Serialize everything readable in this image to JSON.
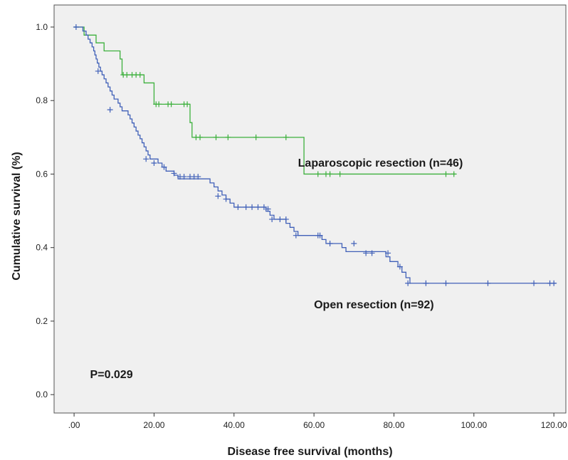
{
  "chart_data": {
    "type": "line",
    "title": "",
    "xlabel": "Disease free survival (months)",
    "ylabel": "Cumulative survival (%)",
    "xlim": [
      -5,
      123
    ],
    "ylim": [
      -0.05,
      1.06
    ],
    "x_ticks": [
      {
        "value": 0,
        "label": ".00"
      },
      {
        "value": 20,
        "label": "20.00"
      },
      {
        "value": 40,
        "label": "40.00"
      },
      {
        "value": 60,
        "label": "60.00"
      },
      {
        "value": 80,
        "label": "80.00"
      },
      {
        "value": 100,
        "label": "100.00"
      },
      {
        "value": 120,
        "label": "120.00"
      }
    ],
    "y_ticks": [
      {
        "value": 0,
        "label": "0.0"
      },
      {
        "value": 0.2,
        "label": "0.2"
      },
      {
        "value": 0.4,
        "label": "0.4"
      },
      {
        "value": 0.6,
        "label": "0.6"
      },
      {
        "value": 0.8,
        "label": "0.8"
      },
      {
        "value": 1.0,
        "label": "1.0"
      }
    ],
    "plot_background": "#f0f0f0",
    "annotations": [
      {
        "text": "P=0.029",
        "x": 4,
        "y": 0.045
      },
      {
        "text": "Laparoscopic resection (n=46)",
        "x": 56,
        "y": 0.62
      },
      {
        "text": "Open resection (n=92)",
        "x": 60,
        "y": 0.235
      }
    ],
    "series": [
      {
        "name": "Laparoscopic resection (n=46)",
        "color": "#3cb03c",
        "steps": [
          [
            0,
            1.0
          ],
          [
            2.5,
            0.978
          ],
          [
            5.5,
            0.957
          ],
          [
            7.5,
            0.935
          ],
          [
            11.5,
            0.913
          ],
          [
            12,
            0.87
          ],
          [
            17.5,
            0.848
          ],
          [
            20,
            0.79
          ],
          [
            29,
            0.74
          ],
          [
            29.5,
            0.7
          ],
          [
            57.5,
            0.6
          ],
          [
            95.5,
            0.6
          ]
        ],
        "censored": [
          [
            12.3,
            0.87
          ],
          [
            13.2,
            0.87
          ],
          [
            14.5,
            0.87
          ],
          [
            15.5,
            0.87
          ],
          [
            16.5,
            0.87
          ],
          [
            20.5,
            0.79
          ],
          [
            21.2,
            0.79
          ],
          [
            23.5,
            0.79
          ],
          [
            24.3,
            0.79
          ],
          [
            27.5,
            0.79
          ],
          [
            28.3,
            0.79
          ],
          [
            30.5,
            0.7
          ],
          [
            31.5,
            0.7
          ],
          [
            35.5,
            0.7
          ],
          [
            38.5,
            0.7
          ],
          [
            45.5,
            0.7
          ],
          [
            53,
            0.7
          ],
          [
            61,
            0.6
          ],
          [
            63,
            0.6
          ],
          [
            64,
            0.6
          ],
          [
            66.5,
            0.6
          ],
          [
            93,
            0.6
          ],
          [
            95,
            0.6
          ]
        ]
      },
      {
        "name": "Open resection (n=92)",
        "color": "#4060b8",
        "steps": [
          [
            0,
            1.0
          ],
          [
            2.2,
            0.989
          ],
          [
            3,
            0.978
          ],
          [
            3.5,
            0.967
          ],
          [
            4,
            0.957
          ],
          [
            4.5,
            0.946
          ],
          [
            4.9,
            0.935
          ],
          [
            5.2,
            0.924
          ],
          [
            5.5,
            0.913
          ],
          [
            5.8,
            0.902
          ],
          [
            6.2,
            0.891
          ],
          [
            6.6,
            0.88
          ],
          [
            7,
            0.87
          ],
          [
            7.5,
            0.859
          ],
          [
            8,
            0.848
          ],
          [
            8.5,
            0.837
          ],
          [
            9,
            0.826
          ],
          [
            9.5,
            0.815
          ],
          [
            10,
            0.804
          ],
          [
            11,
            0.793
          ],
          [
            11.5,
            0.783
          ],
          [
            12,
            0.772
          ],
          [
            13.5,
            0.761
          ],
          [
            14,
            0.75
          ],
          [
            14.5,
            0.739
          ],
          [
            15,
            0.728
          ],
          [
            15.5,
            0.717
          ],
          [
            16,
            0.706
          ],
          [
            16.5,
            0.696
          ],
          [
            17,
            0.685
          ],
          [
            17.5,
            0.674
          ],
          [
            18,
            0.663
          ],
          [
            18.5,
            0.652
          ],
          [
            19,
            0.641
          ],
          [
            21,
            0.63
          ],
          [
            22,
            0.619
          ],
          [
            23,
            0.608
          ],
          [
            25,
            0.597
          ],
          [
            26,
            0.587
          ],
          [
            34,
            0.576
          ],
          [
            35,
            0.565
          ],
          [
            36,
            0.554
          ],
          [
            37,
            0.543
          ],
          [
            38,
            0.532
          ],
          [
            39,
            0.521
          ],
          [
            40,
            0.51
          ],
          [
            48,
            0.499
          ],
          [
            49,
            0.488
          ],
          [
            50,
            0.477
          ],
          [
            53,
            0.466
          ],
          [
            54,
            0.455
          ],
          [
            55,
            0.444
          ],
          [
            56,
            0.433
          ],
          [
            62,
            0.422
          ],
          [
            63,
            0.411
          ],
          [
            67,
            0.4
          ],
          [
            68,
            0.389
          ],
          [
            78,
            0.375
          ],
          [
            79,
            0.362
          ],
          [
            81,
            0.348
          ],
          [
            82,
            0.333
          ],
          [
            83,
            0.318
          ],
          [
            84,
            0.303
          ],
          [
            120.5,
            0.303
          ]
        ],
        "censored": [
          [
            0.5,
            1.0
          ],
          [
            6,
            0.88
          ],
          [
            9,
            0.775
          ],
          [
            18,
            0.641
          ],
          [
            20,
            0.63
          ],
          [
            22.5,
            0.619
          ],
          [
            25,
            0.602
          ],
          [
            26.5,
            0.593
          ],
          [
            27.5,
            0.593
          ],
          [
            29,
            0.593
          ],
          [
            30,
            0.593
          ],
          [
            31,
            0.593
          ],
          [
            36,
            0.54
          ],
          [
            38,
            0.532
          ],
          [
            41,
            0.51
          ],
          [
            43,
            0.51
          ],
          [
            44.5,
            0.51
          ],
          [
            46,
            0.51
          ],
          [
            47.5,
            0.51
          ],
          [
            48.5,
            0.505
          ],
          [
            49.5,
            0.477
          ],
          [
            51.5,
            0.477
          ],
          [
            53,
            0.477
          ],
          [
            55.5,
            0.433
          ],
          [
            61,
            0.433
          ],
          [
            61.5,
            0.433
          ],
          [
            64,
            0.411
          ],
          [
            70,
            0.411
          ],
          [
            73,
            0.385
          ],
          [
            74.5,
            0.385
          ],
          [
            78.5,
            0.385
          ],
          [
            81.5,
            0.348
          ],
          [
            83.5,
            0.303
          ],
          [
            88,
            0.303
          ],
          [
            93,
            0.303
          ],
          [
            103.5,
            0.303
          ],
          [
            115,
            0.303
          ],
          [
            119,
            0.303
          ],
          [
            120,
            0.303
          ]
        ]
      }
    ]
  }
}
